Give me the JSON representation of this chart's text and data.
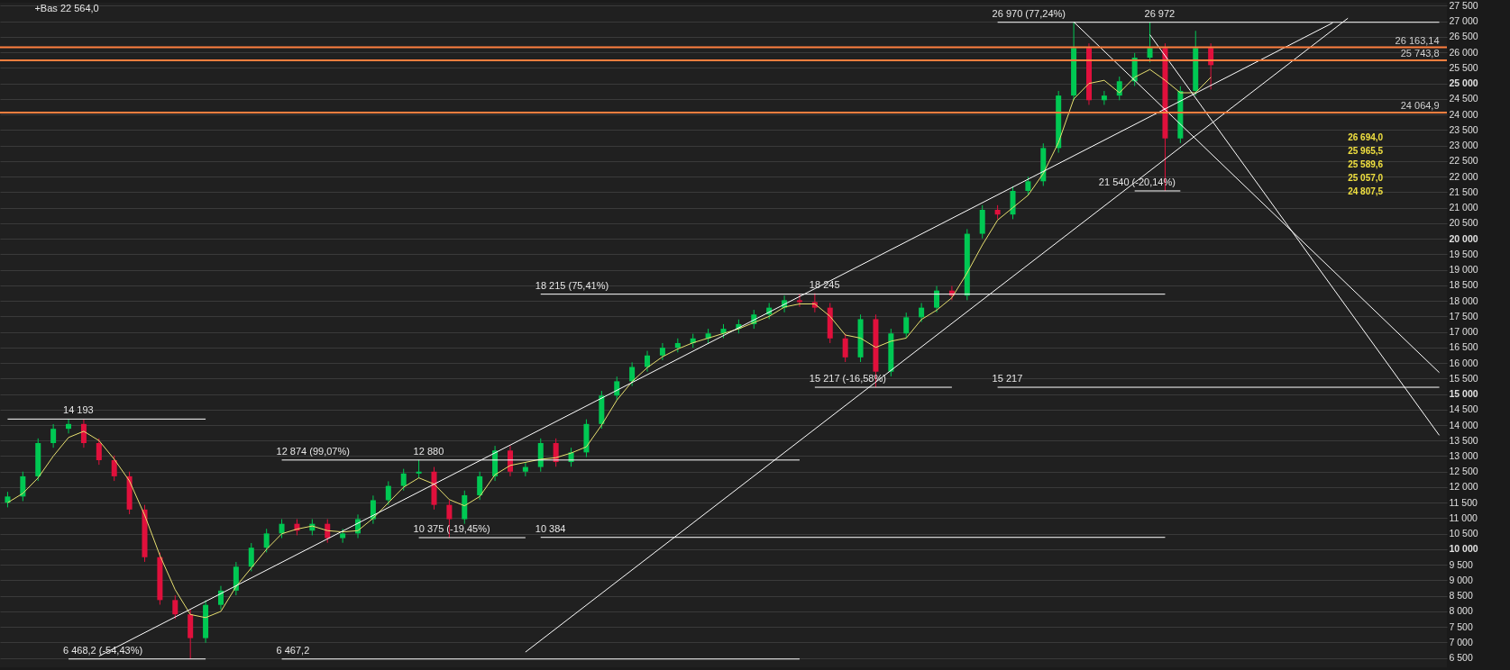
{
  "chart_data": {
    "type": "candlestick",
    "subtitle": "+Bas 22 564,0",
    "categories": [
      null,
      null,
      null,
      null,
      null,
      null,
      null,
      null,
      null,
      null,
      null,
      null,
      null,
      null,
      null,
      null,
      null,
      null,
      null,
      null,
      null,
      null,
      null,
      null,
      null,
      null,
      null,
      null,
      null,
      null,
      null,
      null,
      null,
      null,
      null,
      null,
      null,
      null,
      null,
      null,
      null,
      null,
      null,
      null,
      null,
      null,
      null,
      null,
      null,
      null,
      null,
      null,
      null,
      null,
      null,
      null,
      null,
      null,
      null,
      null,
      null,
      null,
      null,
      null,
      null,
      null,
      null,
      null,
      null,
      null,
      null,
      null,
      null,
      null,
      null,
      null,
      null,
      null,
      null,
      null,
      null,
      null,
      null,
      null,
      null,
      null,
      null,
      null,
      null,
      null,
      null,
      null,
      null,
      null,
      null
    ],
    "ohlc": [
      [
        11500,
        11850,
        11350,
        11700
      ],
      [
        11700,
        12500,
        11550,
        12350
      ],
      [
        12350,
        13570,
        12200,
        13420
      ],
      [
        13420,
        14030,
        13270,
        13880
      ],
      [
        13880,
        14193,
        13730,
        14035
      ],
      [
        14035,
        14185,
        13270,
        13420
      ],
      [
        13420,
        13570,
        12720,
        12870
      ],
      [
        12870,
        13020,
        12200,
        12350
      ],
      [
        12350,
        12500,
        11130,
        11280
      ],
      [
        11280,
        11430,
        9595,
        9745
      ],
      [
        9745,
        9895,
        8215,
        8365
      ],
      [
        8365,
        8515,
        7755,
        7905
      ],
      [
        7905,
        8055,
        6468.2,
        7140
      ],
      [
        7140,
        8360,
        6990,
        8210
      ],
      [
        8210,
        8820,
        8060,
        8670
      ],
      [
        8670,
        9590,
        8520,
        9440
      ],
      [
        9440,
        10200,
        9290,
        10050
      ],
      [
        10050,
        10660,
        9900,
        10510
      ],
      [
        10510,
        10970,
        10360,
        10820
      ],
      [
        10820,
        10970,
        10450,
        10600
      ],
      [
        10600,
        10970,
        10450,
        10820
      ],
      [
        10820,
        10970,
        10210,
        10360
      ],
      [
        10360,
        10660,
        10210,
        10510
      ],
      [
        10510,
        11120,
        10360,
        10970
      ],
      [
        10970,
        11730,
        10820,
        11580
      ],
      [
        11580,
        12190,
        11430,
        12040
      ],
      [
        12040,
        12590,
        11890,
        12440
      ],
      [
        12440,
        12880,
        12290,
        12500
      ],
      [
        12500,
        12650,
        11280,
        11430
      ],
      [
        11430,
        11580,
        10375,
        10970
      ],
      [
        10970,
        11890,
        10820,
        11740
      ],
      [
        11740,
        12500,
        11590,
        12350
      ],
      [
        12350,
        13330,
        12200,
        13180
      ],
      [
        13180,
        13330,
        12350,
        12500
      ],
      [
        12500,
        12800,
        12350,
        12650
      ],
      [
        12650,
        13570,
        12500,
        13420
      ],
      [
        13420,
        13570,
        12660,
        12810
      ],
      [
        12810,
        13270,
        12660,
        13120
      ],
      [
        13120,
        14185,
        12970,
        14035
      ],
      [
        14035,
        15100,
        13885,
        14950
      ],
      [
        14950,
        15560,
        14800,
        15410
      ],
      [
        15410,
        16020,
        15260,
        15870
      ],
      [
        15870,
        16390,
        15720,
        16240
      ],
      [
        16240,
        16640,
        16090,
        16490
      ],
      [
        16490,
        16790,
        16340,
        16640
      ],
      [
        16640,
        16940,
        16490,
        16790
      ],
      [
        16790,
        17100,
        16640,
        16950
      ],
      [
        16950,
        17250,
        16800,
        17100
      ],
      [
        17100,
        17400,
        16950,
        17250
      ],
      [
        17250,
        17710,
        17100,
        17560
      ],
      [
        17560,
        17930,
        17410,
        17780
      ],
      [
        17780,
        18170,
        17630,
        18020
      ],
      [
        18020,
        18215,
        17810,
        17960
      ],
      [
        17960,
        18245,
        17630,
        17780
      ],
      [
        17780,
        17930,
        16640,
        16790
      ],
      [
        16790,
        16940,
        16030,
        16180
      ],
      [
        16180,
        17560,
        16030,
        17410
      ],
      [
        17410,
        17560,
        15217,
        15720
      ],
      [
        15720,
        17100,
        15570,
        16950
      ],
      [
        16950,
        17620,
        16800,
        17470
      ],
      [
        17470,
        17930,
        17320,
        17780
      ],
      [
        17780,
        18480,
        17630,
        18330
      ],
      [
        18330,
        18480,
        18020,
        18170
      ],
      [
        18170,
        20310,
        18020,
        20160
      ],
      [
        20160,
        21080,
        20010,
        20930
      ],
      [
        20930,
        21080,
        20630,
        20780
      ],
      [
        20780,
        21690,
        20630,
        21540
      ],
      [
        21540,
        22000,
        21390,
        21850
      ],
      [
        21850,
        23070,
        21700,
        22920
      ],
      [
        22920,
        24760,
        22770,
        24610
      ],
      [
        24610,
        26970,
        24460,
        26140
      ],
      [
        26140,
        26290,
        24310,
        24460
      ],
      [
        24460,
        24760,
        24310,
        24610
      ],
      [
        24610,
        25220,
        24460,
        25070
      ],
      [
        25070,
        25980,
        24920,
        25830
      ],
      [
        25830,
        26972,
        25680,
        26140
      ],
      [
        26140,
        26290,
        21540,
        23230
      ],
      [
        23230,
        24910,
        23080,
        24760
      ],
      [
        24760,
        26694,
        24610,
        26140
      ],
      [
        26140,
        26290,
        24807.5,
        25589.6
      ],
      null,
      null,
      null,
      null,
      null,
      null,
      null,
      null,
      null,
      null,
      null,
      null,
      null,
      null,
      null
    ],
    "colors": [
      "#00c853",
      "#00c853",
      "#00c853",
      "#00c853",
      "#00c853",
      "#e0103c",
      "#e0103c",
      "#e0103c",
      "#e0103c",
      "#e0103c",
      "#e0103c",
      "#e0103c",
      "#e0103c",
      "#00c853",
      "#00c853",
      "#00c853",
      "#00c853",
      "#00c853",
      "#00c853",
      "#e0103c",
      "#00c853",
      "#e0103c",
      "#00c853",
      "#00c853",
      "#00c853",
      "#00c853",
      "#00c853",
      "#00c853",
      "#e0103c",
      "#e0103c",
      "#00c853",
      "#00c853",
      "#00c853",
      "#e0103c",
      "#00c853",
      "#00c853",
      "#e0103c",
      "#00c853",
      "#00c853",
      "#00c853",
      "#00c853",
      "#00c853",
      "#00c853",
      "#00c853",
      "#00c853",
      "#00c853",
      "#00c853",
      "#00c853",
      "#00c853",
      "#00c853",
      "#00c853",
      "#00c853",
      "#e0103c",
      "#e0103c",
      "#e0103c",
      "#e0103c",
      "#00c853",
      "#e0103c",
      "#00c853",
      "#00c853",
      "#00c853",
      "#00c853",
      "#e0103c",
      "#00c853",
      "#00c853",
      "#e0103c",
      "#00c853",
      "#00c853",
      "#00c853",
      "#00c853",
      "#00c853",
      "#e0103c",
      "#00c853",
      "#00c853",
      "#00c853",
      "#00c853",
      "#e0103c",
      "#00c853",
      "#00c853",
      "#e0103c",
      null,
      null,
      null,
      null,
      null,
      null,
      null,
      null,
      null,
      null,
      null,
      null,
      null,
      null,
      null
    ],
    "series": [
      {
        "type": "line",
        "color": "#e8e070",
        "values": [
          11500,
          11800,
          12300,
          13000,
          13600,
          13800,
          13500,
          12900,
          12200,
          11100,
          9800,
          8700,
          7900,
          7800,
          8000,
          8800,
          9400,
          10000,
          10500,
          10650,
          10750,
          10600,
          10560,
          10600,
          11000,
          11500,
          12000,
          12300,
          12100,
          11600,
          11400,
          11700,
          12400,
          12700,
          12800,
          12900,
          12950,
          13100,
          13300,
          14000,
          14800,
          15400,
          15850,
          16200,
          16450,
          16650,
          16800,
          16950,
          17100,
          17300,
          17500,
          17800,
          17900,
          17900,
          17500,
          16900,
          16800,
          16500,
          16700,
          16800,
          17400,
          17700,
          18100,
          18900,
          19800,
          20600,
          21000,
          21400,
          22100,
          23100,
          24500,
          25000,
          25100,
          24700,
          25200,
          25450,
          25100,
          24700,
          24700,
          25200,
          null,
          null,
          null,
          null,
          null,
          null,
          null,
          null,
          null,
          null,
          null,
          null,
          null,
          null,
          null
        ]
      },
      {
        "type": "line",
        "color": "#ffffff",
        "values": [
          null,
          null,
          null,
          null,
          null,
          null,
          6560,
          null,
          null,
          null,
          null,
          null,
          null,
          null,
          null,
          null,
          null,
          null,
          null,
          null,
          null,
          null,
          null,
          null,
          null,
          null,
          null,
          null,
          null,
          null,
          null,
          null,
          null,
          null,
          null,
          null,
          null,
          null,
          null,
          null,
          null,
          null,
          null,
          null,
          null,
          null,
          null,
          null,
          null,
          null,
          null,
          null,
          null,
          null,
          null,
          null,
          null,
          null,
          null,
          null,
          null,
          null,
          null,
          null,
          null,
          null,
          null,
          null,
          null,
          null,
          null,
          null,
          null,
          null,
          null,
          null,
          null,
          null,
          null,
          null,
          null,
          null,
          null,
          null,
          null,
          null,
          null,
          26950,
          null,
          null,
          null,
          null,
          null,
          null,
          null
        ]
      },
      {
        "type": "line",
        "color": "#ffffff",
        "values": [
          null,
          null,
          null,
          null,
          null,
          null,
          null,
          null,
          null,
          null,
          null,
          null,
          null,
          null,
          null,
          null,
          null,
          null,
          null,
          null,
          null,
          null,
          null,
          null,
          null,
          null,
          null,
          null,
          null,
          null,
          null,
          null,
          null,
          null,
          6690,
          null,
          null,
          null,
          null,
          null,
          null,
          null,
          null,
          null,
          null,
          null,
          null,
          null,
          null,
          null,
          null,
          null,
          null,
          null,
          null,
          null,
          null,
          null,
          null,
          null,
          null,
          null,
          null,
          null,
          null,
          null,
          null,
          null,
          null,
          null,
          null,
          null,
          null,
          null,
          null,
          null,
          null,
          null,
          null,
          null,
          null,
          null,
          null,
          null,
          null,
          null,
          null,
          null,
          27100,
          null,
          null,
          null,
          null,
          null,
          null
        ]
      },
      {
        "type": "line",
        "color": "#ffffff",
        "values": [
          null,
          null,
          null,
          null,
          null,
          null,
          null,
          null,
          null,
          null,
          null,
          null,
          null,
          null,
          null,
          null,
          null,
          null,
          null,
          null,
          null,
          null,
          null,
          null,
          null,
          null,
          null,
          null,
          null,
          null,
          null,
          null,
          null,
          null,
          null,
          null,
          null,
          null,
          null,
          null,
          null,
          null,
          null,
          null,
          null,
          null,
          null,
          null,
          null,
          null,
          null,
          null,
          null,
          null,
          null,
          null,
          null,
          null,
          null,
          null,
          null,
          null,
          null,
          null,
          null,
          null,
          null,
          null,
          null,
          null,
          26980,
          null,
          null,
          null,
          null,
          null,
          null,
          null,
          null,
          null,
          null,
          null,
          null,
          null,
          null,
          null,
          null,
          null,
          null,
          null,
          null,
          null,
          null,
          null,
          15690
        ]
      },
      {
        "type": "line",
        "color": "#ffffff",
        "values": [
          null,
          null,
          null,
          null,
          null,
          null,
          null,
          null,
          null,
          null,
          null,
          null,
          null,
          null,
          null,
          null,
          null,
          null,
          null,
          null,
          null,
          null,
          null,
          null,
          null,
          null,
          null,
          null,
          null,
          null,
          null,
          null,
          null,
          null,
          null,
          null,
          null,
          null,
          null,
          null,
          null,
          null,
          null,
          null,
          null,
          null,
          null,
          null,
          null,
          null,
          null,
          null,
          null,
          null,
          null,
          null,
          null,
          null,
          null,
          null,
          null,
          null,
          null,
          null,
          null,
          null,
          null,
          null,
          null,
          null,
          null,
          null,
          null,
          null,
          null,
          26570,
          null,
          null,
          null,
          null,
          null,
          null,
          null,
          null,
          null,
          null,
          null,
          null,
          null,
          null,
          null,
          null,
          null,
          null,
          13670
        ]
      },
      {
        "type": "line",
        "color": "#ffffff",
        "values": [
          14193,
          null,
          null,
          null,
          null,
          null,
          null,
          null,
          null,
          null,
          null,
          null,
          null,
          14193,
          null,
          null,
          null,
          null,
          null,
          null,
          null,
          null,
          null,
          null,
          null,
          null,
          null,
          null,
          null,
          null,
          null,
          null,
          null,
          null,
          null,
          null,
          null,
          null,
          null,
          null,
          null,
          null,
          null,
          null,
          null,
          null,
          null,
          null,
          null,
          null,
          null,
          null,
          null,
          null,
          null,
          null,
          null,
          null,
          null,
          null,
          null,
          null,
          null,
          null,
          null,
          null,
          null,
          null,
          null,
          null,
          null,
          null,
          null,
          null,
          null,
          null,
          null,
          null,
          null,
          null,
          null,
          null,
          null,
          null,
          null,
          null,
          null,
          null,
          null,
          null,
          null,
          null,
          null,
          null,
          null
        ]
      },
      {
        "type": "line",
        "color": "#ffffff",
        "values": [
          null,
          null,
          null,
          null,
          6468.2,
          null,
          null,
          null,
          null,
          null,
          null,
          null,
          null,
          6468.2,
          null,
          null,
          null,
          null,
          null,
          null,
          null,
          null,
          null,
          null,
          null,
          null,
          null,
          null,
          null,
          null,
          null,
          null,
          null,
          null,
          null,
          null,
          null,
          null,
          null,
          null,
          null,
          null,
          null,
          null,
          null,
          null,
          null,
          null,
          null,
          null,
          null,
          null,
          null,
          null,
          null,
          null,
          null,
          null,
          null,
          null,
          null,
          null,
          null,
          null,
          null,
          null,
          null,
          null,
          null,
          null,
          null,
          null,
          null,
          null,
          null,
          null,
          null,
          null,
          null,
          null,
          null,
          null,
          null,
          null,
          null,
          null,
          null,
          null,
          null,
          null,
          null,
          null,
          null,
          null,
          null
        ]
      },
      {
        "type": "line",
        "color": "#ffffff",
        "values": [
          null,
          null,
          null,
          null,
          null,
          null,
          null,
          null,
          null,
          null,
          null,
          null,
          null,
          null,
          null,
          null,
          null,
          null,
          12874,
          null,
          null,
          null,
          null,
          null,
          null,
          null,
          null,
          null,
          null,
          null,
          null,
          null,
          null,
          null,
          null,
          null,
          null,
          null,
          null,
          null,
          null,
          null,
          null,
          null,
          null,
          null,
          null,
          null,
          null,
          null,
          null,
          null,
          12874,
          null,
          null,
          null,
          null,
          null,
          null,
          null,
          null,
          null,
          null,
          null,
          null,
          null,
          null,
          null,
          null,
          null,
          null,
          null,
          null,
          null,
          null,
          null,
          null,
          null,
          null,
          null,
          null,
          null,
          null,
          null,
          null,
          null,
          null,
          null,
          null,
          null,
          null,
          null,
          null,
          null,
          null
        ]
      },
      {
        "type": "line",
        "color": "#ffffff",
        "values": [
          null,
          null,
          null,
          null,
          null,
          null,
          null,
          null,
          null,
          null,
          null,
          null,
          null,
          null,
          null,
          null,
          null,
          null,
          6467.2,
          null,
          null,
          null,
          null,
          null,
          null,
          null,
          null,
          null,
          null,
          null,
          null,
          null,
          null,
          null,
          null,
          null,
          null,
          null,
          null,
          null,
          null,
          null,
          null,
          null,
          null,
          null,
          null,
          null,
          null,
          null,
          null,
          null,
          6467.2,
          null,
          null,
          null,
          null,
          null,
          null,
          null,
          null,
          null,
          null,
          null,
          null,
          null,
          null,
          null,
          null,
          null,
          null,
          null,
          null,
          null,
          null,
          null,
          null,
          null,
          null,
          null,
          null,
          null,
          null,
          null,
          null,
          null,
          null,
          null,
          null,
          null,
          null,
          null,
          null,
          null,
          null
        ]
      },
      {
        "type": "line",
        "color": "#ffffff",
        "values": [
          null,
          null,
          null,
          null,
          null,
          null,
          null,
          null,
          null,
          null,
          null,
          null,
          null,
          null,
          null,
          null,
          null,
          null,
          null,
          null,
          null,
          null,
          null,
          null,
          null,
          null,
          null,
          10375,
          null,
          null,
          null,
          null,
          null,
          null,
          10375,
          null,
          null,
          null,
          null,
          null,
          null,
          null,
          null,
          null,
          null,
          null,
          null,
          null,
          null,
          null,
          null,
          null,
          null,
          null,
          null,
          null,
          null,
          null,
          null,
          null,
          null,
          null,
          null,
          null,
          null,
          null,
          null,
          null,
          null,
          null,
          null,
          null,
          null,
          null,
          null,
          null,
          null,
          null,
          null,
          null,
          null,
          null,
          null,
          null,
          null,
          null,
          null,
          null,
          null,
          null,
          null,
          null,
          null,
          null,
          null
        ]
      },
      {
        "type": "line",
        "color": "#ffffff",
        "values": [
          null,
          null,
          null,
          null,
          null,
          null,
          null,
          null,
          null,
          null,
          null,
          null,
          null,
          null,
          null,
          null,
          null,
          null,
          null,
          null,
          null,
          null,
          null,
          null,
          null,
          null,
          null,
          null,
          null,
          null,
          null,
          null,
          null,
          null,
          null,
          18215,
          null,
          null,
          null,
          null,
          null,
          null,
          null,
          null,
          null,
          null,
          null,
          null,
          null,
          null,
          null,
          null,
          null,
          null,
          null,
          null,
          null,
          null,
          null,
          null,
          null,
          null,
          null,
          null,
          null,
          null,
          null,
          null,
          null,
          null,
          null,
          null,
          null,
          null,
          null,
          null,
          18215,
          null,
          null,
          null,
          null,
          null,
          null,
          null,
          null,
          null,
          null,
          null,
          null,
          null,
          null,
          null,
          null,
          null,
          null
        ]
      },
      {
        "type": "line",
        "color": "#ffffff",
        "values": [
          null,
          null,
          null,
          null,
          null,
          null,
          null,
          null,
          null,
          null,
          null,
          null,
          null,
          null,
          null,
          null,
          null,
          null,
          null,
          null,
          null,
          null,
          null,
          null,
          null,
          null,
          null,
          null,
          null,
          null,
          null,
          null,
          null,
          null,
          null,
          10384,
          null,
          null,
          null,
          null,
          null,
          null,
          null,
          null,
          null,
          null,
          null,
          null,
          null,
          null,
          null,
          null,
          null,
          null,
          null,
          null,
          null,
          null,
          null,
          null,
          null,
          null,
          null,
          null,
          null,
          null,
          null,
          null,
          null,
          null,
          null,
          null,
          null,
          null,
          null,
          null,
          10384,
          null,
          null,
          null,
          null,
          null,
          null,
          null,
          null,
          null,
          null,
          null,
          null,
          null,
          null,
          null,
          null,
          null,
          null
        ]
      },
      {
        "type": "line",
        "color": "#ffffff",
        "values": [
          null,
          null,
          null,
          null,
          null,
          null,
          null,
          null,
          null,
          null,
          null,
          null,
          null,
          null,
          null,
          null,
          null,
          null,
          null,
          null,
          null,
          null,
          null,
          null,
          null,
          null,
          null,
          null,
          null,
          null,
          null,
          null,
          null,
          null,
          null,
          null,
          null,
          null,
          null,
          null,
          null,
          null,
          null,
          null,
          null,
          null,
          null,
          null,
          null,
          null,
          null,
          null,
          null,
          15217,
          null,
          null,
          null,
          null,
          null,
          null,
          null,
          null,
          15217,
          null,
          null,
          null,
          null,
          null,
          null,
          null,
          null,
          null,
          null,
          null,
          null,
          null,
          null,
          null,
          null,
          null,
          null,
          null,
          null,
          null,
          null,
          null,
          null,
          null,
          null,
          null,
          null,
          null,
          null,
          null,
          null
        ]
      },
      {
        "type": "line",
        "color": "#ffffff",
        "values": [
          null,
          null,
          null,
          null,
          null,
          null,
          null,
          null,
          null,
          null,
          null,
          null,
          null,
          null,
          null,
          null,
          null,
          null,
          null,
          null,
          null,
          null,
          null,
          null,
          null,
          null,
          null,
          null,
          null,
          null,
          null,
          null,
          null,
          null,
          null,
          null,
          null,
          null,
          null,
          null,
          null,
          null,
          null,
          null,
          null,
          null,
          null,
          null,
          null,
          null,
          null,
          null,
          null,
          null,
          null,
          null,
          null,
          null,
          null,
          null,
          null,
          null,
          null,
          null,
          null,
          15217,
          null,
          null,
          null,
          null,
          null,
          null,
          null,
          null,
          null,
          null,
          null,
          null,
          null,
          null,
          null,
          null,
          null,
          null,
          null,
          null,
          null,
          null,
          null,
          null,
          null,
          null,
          null,
          null,
          15217
        ]
      },
      {
        "type": "line",
        "color": "#ffffff",
        "values": [
          null,
          null,
          null,
          null,
          null,
          null,
          null,
          null,
          null,
          null,
          null,
          null,
          null,
          null,
          null,
          null,
          null,
          null,
          null,
          null,
          null,
          null,
          null,
          null,
          null,
          null,
          null,
          null,
          null,
          null,
          null,
          null,
          null,
          null,
          null,
          null,
          null,
          null,
          null,
          null,
          null,
          null,
          null,
          null,
          null,
          null,
          null,
          null,
          null,
          null,
          null,
          null,
          null,
          null,
          null,
          null,
          null,
          null,
          null,
          null,
          null,
          null,
          null,
          null,
          null,
          26970,
          null,
          null,
          null,
          null,
          null,
          null,
          null,
          null,
          null,
          null,
          null,
          null,
          null,
          null,
          null,
          null,
          null,
          null,
          null,
          null,
          null,
          null,
          null,
          null,
          null,
          null,
          null,
          null,
          26970
        ]
      },
      {
        "type": "line",
        "color": "#ffffff",
        "values": [
          null,
          null,
          null,
          null,
          null,
          null,
          null,
          null,
          null,
          null,
          null,
          null,
          null,
          null,
          null,
          null,
          null,
          null,
          null,
          null,
          null,
          null,
          null,
          null,
          null,
          null,
          null,
          null,
          null,
          null,
          null,
          null,
          null,
          null,
          null,
          null,
          null,
          null,
          null,
          null,
          null,
          null,
          null,
          null,
          null,
          null,
          null,
          null,
          null,
          null,
          null,
          null,
          null,
          null,
          null,
          null,
          null,
          null,
          null,
          null,
          null,
          null,
          null,
          null,
          null,
          null,
          null,
          null,
          null,
          null,
          null,
          null,
          null,
          null,
          21540,
          null,
          null,
          21540,
          null,
          null,
          null,
          null,
          null,
          null,
          null,
          null,
          null,
          null,
          null,
          null,
          null,
          null,
          null,
          null,
          null
        ]
      }
    ],
    "ref_lines": [
      {
        "axis": "y",
        "value": 26163.14,
        "label": "26 163,14",
        "color": "#ff7f3f"
      },
      {
        "axis": "y",
        "value": 25743.8,
        "label": "25 743,8",
        "color": "#ff7f3f"
      },
      {
        "axis": "y",
        "value": 24064.9,
        "label": "24 064,9",
        "color": "#ff7f3f"
      }
    ],
    "annotations": [
      {
        "text": "14 193",
        "y": 14193
      },
      {
        "text": "6 468,2 (-54,43%)",
        "y": 6468.2
      },
      {
        "text": "12 874 (99,07%)",
        "y": 12874
      },
      {
        "text": "6 467,2",
        "y": 6467.2
      },
      {
        "text": "12 880",
        "y": 12880
      },
      {
        "text": "10 375 (-19,45%)",
        "y": 10375
      },
      {
        "text": "10 384",
        "y": 10384
      },
      {
        "text": "18 215 (75,41%)",
        "y": 18215
      },
      {
        "text": "18 245",
        "y": 18245
      },
      {
        "text": "15 217 (-16,58%)",
        "y": 15217
      },
      {
        "text": "15 217",
        "y": 15217
      },
      {
        "text": "26 970 (77,24%)",
        "y": 26970
      },
      {
        "text": "26 972",
        "y": 26972
      },
      {
        "text": "21 540 (-20,14%)",
        "y": 21540
      },
      "26 694,0",
      "25 965,5",
      "25 589,6",
      "25 057,0",
      "24 807,5"
    ],
    "ylim": [
      6200,
      27600
    ],
    "yticks": [
      {
        "value": 6500,
        "label": "6 500"
      },
      {
        "value": 7000,
        "label": "7 000"
      },
      {
        "value": 7500,
        "label": "7 500"
      },
      {
        "value": 8000,
        "label": "8 000"
      },
      {
        "value": 8500,
        "label": "8 500"
      },
      {
        "value": 9000,
        "label": "9 000"
      },
      {
        "value": 9500,
        "label": "9 500"
      },
      {
        "value": 10000,
        "label": "10 000"
      },
      {
        "value": 10500,
        "label": "10 500"
      },
      {
        "value": 11000,
        "label": "11 000"
      },
      {
        "value": 11500,
        "label": "11 500"
      },
      {
        "value": 12000,
        "label": "12 000"
      },
      {
        "value": 12500,
        "label": "12 500"
      },
      {
        "value": 13000,
        "label": "13 000"
      },
      {
        "value": 13500,
        "label": "13 500"
      },
      {
        "value": 14000,
        "label": "14 000"
      },
      {
        "value": 14500,
        "label": "14 500"
      },
      {
        "value": 15000,
        "label": "15 000"
      },
      {
        "value": 15500,
        "label": "15 500"
      },
      {
        "value": 16000,
        "label": "16 000"
      },
      {
        "value": 16500,
        "label": "16 500"
      },
      {
        "value": 17000,
        "label": "17 000"
      },
      {
        "value": 17500,
        "label": "17 500"
      },
      {
        "value": 18000,
        "label": "18 000"
      },
      {
        "value": 18500,
        "label": "18 500"
      },
      {
        "value": 19000,
        "label": "19 000"
      },
      {
        "value": 19500,
        "label": "19 500"
      },
      {
        "value": 20000,
        "label": "20 000"
      },
      {
        "value": 20500,
        "label": "20 500"
      },
      {
        "value": 21000,
        "label": "21 000"
      },
      {
        "value": 21500,
        "label": "21 500"
      },
      {
        "value": 22000,
        "label": "22 000"
      },
      {
        "value": 22500,
        "label": "22 500"
      },
      {
        "value": 23000,
        "label": "23 000"
      },
      {
        "value": 23500,
        "label": "23 500"
      },
      {
        "value": 24000,
        "label": "24 000"
      },
      {
        "value": 24500,
        "label": "24 500"
      },
      {
        "value": 25000,
        "label": "25 000"
      },
      {
        "value": 25500,
        "label": "25 500"
      },
      {
        "value": 26000,
        "label": "26 000"
      },
      {
        "value": 26500,
        "label": "26 500"
      },
      {
        "value": 27000,
        "label": "27 000"
      },
      {
        "value": 27500,
        "label": "27 500"
      }
    ],
    "grid": "y",
    "tick_labels": "y"
  }
}
